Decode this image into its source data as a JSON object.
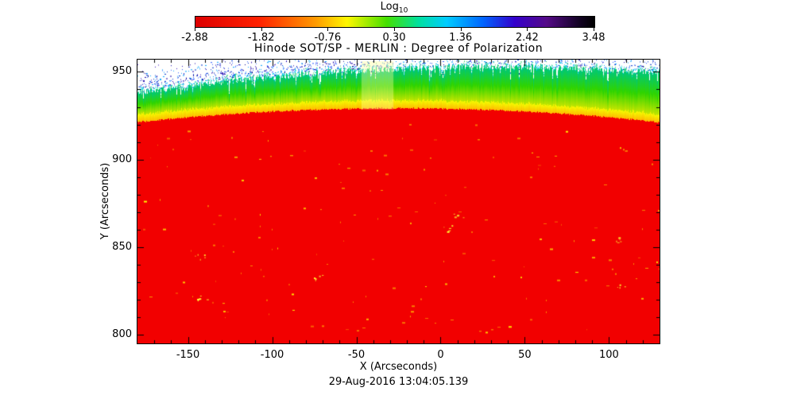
{
  "page": {
    "background": "#ffffff"
  },
  "chart_data": {
    "type": "heatmap",
    "title": "Hinode SOT/SP - MERLIN : Degree of Polarization",
    "xlabel": "X (Arcseconds)",
    "ylabel": "Y (Arcseconds)",
    "timestamp": "29-Aug-2016 13:04:05.139",
    "xlim": [
      -180,
      130
    ],
    "ylim": [
      795,
      957
    ],
    "xticks": [
      -150,
      -100,
      -50,
      0,
      50,
      100
    ],
    "yticks": [
      800,
      850,
      900,
      950
    ],
    "minor_tick_step": 10,
    "grid": false,
    "colorbar": {
      "label": "Log",
      "label_sub": "10",
      "tick_labels": [
        "-2.88",
        "-1.82",
        "-0.76",
        "0.30",
        "1.36",
        "2.42",
        "3.48"
      ],
      "gradient": [
        {
          "pos": 0.0,
          "color": "#dd0000"
        },
        {
          "pos": 0.16,
          "color": "#ff2200"
        },
        {
          "pos": 0.3,
          "color": "#ff9900"
        },
        {
          "pos": 0.38,
          "color": "#fff700"
        },
        {
          "pos": 0.48,
          "color": "#44e000"
        },
        {
          "pos": 0.56,
          "color": "#00e0a0"
        },
        {
          "pos": 0.63,
          "color": "#00ccff"
        },
        {
          "pos": 0.72,
          "color": "#0066ff"
        },
        {
          "pos": 0.8,
          "color": "#3300cc"
        },
        {
          "pos": 0.88,
          "color": "#550a88"
        },
        {
          "pos": 0.96,
          "color": "#140326"
        },
        {
          "pos": 1.0,
          "color": "#000000"
        }
      ]
    },
    "image": {
      "description": "Solar disk (high polarization, red) filling most of frame; curved limb band of yellow then green near top; sparse blue/cyan speckles and white sky above the limb; faint yellow speckles on the disk; bright vertical slit artifact near x=-38 arcsec.",
      "disk_color": "#f20000",
      "limb": {
        "red_top_arcsec_center": 929,
        "red_top_arcsec_edge": 921,
        "yellow_band_arcsec": 4.5,
        "green_top_arcsec": {
          "left": 938,
          "center": 951.5,
          "right": 949
        }
      },
      "stripe_x_arcsec": [
        -47,
        -28
      ],
      "speckle_seed": 20160829
    }
  }
}
